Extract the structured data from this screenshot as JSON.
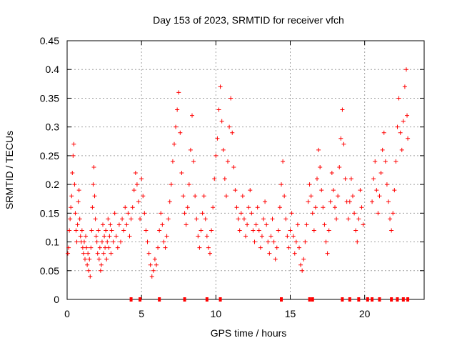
{
  "chart_data": {
    "type": "scatter",
    "title": "Day 153 of 2023, SRMTID for receiver vfch",
    "xlabel": "GPS time / hours",
    "ylabel": "SRMTID / TECUs",
    "xlim": [
      0,
      24
    ],
    "ylim": [
      0,
      0.45
    ],
    "xticks": [
      "0",
      "5",
      "10",
      "15",
      "20"
    ],
    "xtick_values": [
      0,
      5,
      10,
      15,
      20
    ],
    "yticks": [
      "0",
      "0.05",
      "0.1",
      "0.15",
      "0.2",
      "0.25",
      "0.3",
      "0.35",
      "0.4",
      "0.45"
    ],
    "ytick_values": [
      0,
      0.05,
      0.1,
      0.15,
      0.2,
      0.25,
      0.3,
      0.35,
      0.4,
      0.45
    ],
    "grid": true,
    "marker": "plus",
    "color": "#ff0000",
    "points": [
      [
        0.05,
        0.08
      ],
      [
        0.1,
        0.09
      ],
      [
        0.15,
        0.12
      ],
      [
        0.2,
        0.14
      ],
      [
        0.25,
        0.16
      ],
      [
        0.3,
        0.18
      ],
      [
        0.35,
        0.22
      ],
      [
        0.4,
        0.25
      ],
      [
        0.45,
        0.27
      ],
      [
        0.5,
        0.2
      ],
      [
        0.55,
        0.15
      ],
      [
        0.6,
        0.12
      ],
      [
        0.65,
        0.1
      ],
      [
        0.7,
        0.13
      ],
      [
        0.75,
        0.17
      ],
      [
        0.8,
        0.19
      ],
      [
        0.85,
        0.14
      ],
      [
        0.9,
        0.11
      ],
      [
        0.95,
        0.1
      ],
      [
        1.0,
        0.12
      ],
      [
        1.05,
        0.09
      ],
      [
        1.1,
        0.08
      ],
      [
        1.15,
        0.1
      ],
      [
        1.2,
        0.07
      ],
      [
        1.25,
        0.11
      ],
      [
        1.3,
        0.09
      ],
      [
        1.35,
        0.06
      ],
      [
        1.4,
        0.08
      ],
      [
        1.45,
        0.05
      ],
      [
        1.5,
        0.07
      ],
      [
        1.55,
        0.04
      ],
      [
        1.6,
        0.09
      ],
      [
        1.65,
        0.12
      ],
      [
        1.7,
        0.16
      ],
      [
        1.75,
        0.2
      ],
      [
        1.8,
        0.23
      ],
      [
        1.85,
        0.18
      ],
      [
        1.9,
        0.14
      ],
      [
        1.95,
        0.11
      ],
      [
        2.0,
        0.1
      ],
      [
        2.05,
        0.08
      ],
      [
        2.1,
        0.12
      ],
      [
        2.15,
        0.07
      ],
      [
        2.2,
        0.09
      ],
      [
        2.25,
        0.05
      ],
      [
        2.3,
        0.06
      ],
      [
        2.35,
        0.1
      ],
      [
        2.4,
        0.13
      ],
      [
        2.45,
        0.08
      ],
      [
        2.5,
        0.11
      ],
      [
        2.55,
        0.09
      ],
      [
        2.6,
        0.12
      ],
      [
        2.65,
        0.07
      ],
      [
        2.7,
        0.1
      ],
      [
        2.75,
        0.14
      ],
      [
        2.8,
        0.09
      ],
      [
        2.85,
        0.11
      ],
      [
        2.9,
        0.13
      ],
      [
        2.95,
        0.08
      ],
      [
        3.0,
        0.12
      ],
      [
        3.1,
        0.1
      ],
      [
        3.2,
        0.15
      ],
      [
        3.3,
        0.11
      ],
      [
        3.4,
        0.09
      ],
      [
        3.5,
        0.13
      ],
      [
        3.6,
        0.1
      ],
      [
        3.7,
        0.14
      ],
      [
        3.8,
        0.12
      ],
      [
        3.9,
        0.16
      ],
      [
        4.0,
        0.13
      ],
      [
        4.1,
        0.15
      ],
      [
        4.2,
        0.11
      ],
      [
        4.3,
        0.14
      ],
      [
        4.4,
        0.16
      ],
      [
        4.5,
        0.19
      ],
      [
        4.6,
        0.22
      ],
      [
        4.7,
        0.2
      ],
      [
        4.8,
        0.17
      ],
      [
        4.9,
        0.14
      ],
      [
        5.0,
        0.21
      ],
      [
        5.1,
        0.18
      ],
      [
        5.2,
        0.15
      ],
      [
        5.3,
        0.12
      ],
      [
        5.4,
        0.1
      ],
      [
        5.5,
        0.08
      ],
      [
        5.6,
        0.06
      ],
      [
        5.7,
        0.04
      ],
      [
        5.8,
        0.05
      ],
      [
        5.9,
        0.07
      ],
      [
        6.0,
        0.06
      ],
      [
        6.1,
        0.09
      ],
      [
        6.2,
        0.12
      ],
      [
        6.3,
        0.15
      ],
      [
        6.4,
        0.13
      ],
      [
        6.5,
        0.1
      ],
      [
        6.6,
        0.09
      ],
      [
        6.7,
        0.11
      ],
      [
        6.8,
        0.14
      ],
      [
        6.9,
        0.17
      ],
      [
        7.0,
        0.2
      ],
      [
        7.1,
        0.24
      ],
      [
        7.2,
        0.27
      ],
      [
        7.3,
        0.3
      ],
      [
        7.4,
        0.33
      ],
      [
        7.5,
        0.36
      ],
      [
        7.6,
        0.29
      ],
      [
        7.7,
        0.22
      ],
      [
        7.8,
        0.18
      ],
      [
        7.9,
        0.15
      ],
      [
        8.0,
        0.13
      ],
      [
        8.1,
        0.16
      ],
      [
        8.2,
        0.2
      ],
      [
        8.3,
        0.26
      ],
      [
        8.4,
        0.32
      ],
      [
        8.5,
        0.24
      ],
      [
        8.6,
        0.18
      ],
      [
        8.7,
        0.14
      ],
      [
        8.8,
        0.11
      ],
      [
        8.9,
        0.09
      ],
      [
        9.0,
        0.12
      ],
      [
        9.1,
        0.15
      ],
      [
        9.2,
        0.18
      ],
      [
        9.3,
        0.14
      ],
      [
        9.4,
        0.11
      ],
      [
        9.5,
        0.09
      ],
      [
        9.6,
        0.08
      ],
      [
        9.7,
        0.12
      ],
      [
        9.8,
        0.16
      ],
      [
        9.9,
        0.21
      ],
      [
        10.0,
        0.25
      ],
      [
        10.1,
        0.28
      ],
      [
        10.2,
        0.33
      ],
      [
        10.3,
        0.37
      ],
      [
        10.4,
        0.31
      ],
      [
        10.5,
        0.26
      ],
      [
        10.6,
        0.21
      ],
      [
        10.7,
        0.18
      ],
      [
        10.8,
        0.24
      ],
      [
        10.9,
        0.3
      ],
      [
        11.0,
        0.35
      ],
      [
        11.1,
        0.29
      ],
      [
        11.2,
        0.23
      ],
      [
        11.3,
        0.19
      ],
      [
        11.4,
        0.16
      ],
      [
        11.5,
        0.14
      ],
      [
        11.6,
        0.12
      ],
      [
        11.7,
        0.15
      ],
      [
        11.8,
        0.18
      ],
      [
        11.9,
        0.14
      ],
      [
        12.0,
        0.11
      ],
      [
        12.1,
        0.13
      ],
      [
        12.2,
        0.16
      ],
      [
        12.3,
        0.19
      ],
      [
        12.4,
        0.15
      ],
      [
        12.5,
        0.12
      ],
      [
        12.6,
        0.1
      ],
      [
        12.7,
        0.13
      ],
      [
        12.8,
        0.16
      ],
      [
        12.9,
        0.12
      ],
      [
        13.0,
        0.09
      ],
      [
        13.1,
        0.11
      ],
      [
        13.2,
        0.14
      ],
      [
        13.3,
        0.17
      ],
      [
        13.4,
        0.13
      ],
      [
        13.5,
        0.1
      ],
      [
        13.6,
        0.08
      ],
      [
        13.7,
        0.11
      ],
      [
        13.8,
        0.14
      ],
      [
        13.9,
        0.1
      ],
      [
        14.0,
        0.07
      ],
      [
        14.1,
        0.09
      ],
      [
        14.2,
        0.12
      ],
      [
        14.3,
        0.16
      ],
      [
        14.4,
        0.2
      ],
      [
        14.5,
        0.24
      ],
      [
        14.6,
        0.18
      ],
      [
        14.7,
        0.14
      ],
      [
        14.8,
        0.11
      ],
      [
        14.9,
        0.09
      ],
      [
        15.0,
        0.12
      ],
      [
        15.1,
        0.15
      ],
      [
        15.2,
        0.11
      ],
      [
        15.3,
        0.08
      ],
      [
        15.4,
        0.1
      ],
      [
        15.5,
        0.13
      ],
      [
        15.6,
        0.09
      ],
      [
        15.7,
        0.06
      ],
      [
        15.8,
        0.05
      ],
      [
        15.9,
        0.07
      ],
      [
        16.0,
        0.1
      ],
      [
        16.1,
        0.13
      ],
      [
        16.2,
        0.17
      ],
      [
        16.3,
        0.2
      ],
      [
        16.4,
        0.18
      ],
      [
        16.5,
        0.15
      ],
      [
        16.6,
        0.12
      ],
      [
        16.7,
        0.16
      ],
      [
        16.8,
        0.21
      ],
      [
        16.9,
        0.26
      ],
      [
        17.0,
        0.23
      ],
      [
        17.1,
        0.19
      ],
      [
        17.2,
        0.16
      ],
      [
        17.3,
        0.13
      ],
      [
        17.4,
        0.1
      ],
      [
        17.5,
        0.08
      ],
      [
        17.6,
        0.12
      ],
      [
        17.7,
        0.17
      ],
      [
        17.8,
        0.22
      ],
      [
        17.9,
        0.19
      ],
      [
        18.0,
        0.16
      ],
      [
        18.1,
        0.14
      ],
      [
        18.2,
        0.18
      ],
      [
        18.3,
        0.23
      ],
      [
        18.4,
        0.28
      ],
      [
        18.5,
        0.33
      ],
      [
        18.6,
        0.27
      ],
      [
        18.7,
        0.21
      ],
      [
        18.8,
        0.17
      ],
      [
        18.9,
        0.14
      ],
      [
        19.0,
        0.17
      ],
      [
        19.1,
        0.21
      ],
      [
        19.2,
        0.18
      ],
      [
        19.3,
        0.15
      ],
      [
        19.4,
        0.12
      ],
      [
        19.5,
        0.1
      ],
      [
        19.6,
        0.14
      ],
      [
        19.7,
        0.19
      ],
      [
        19.8,
        0.16
      ],
      [
        19.9,
        0.13
      ],
      [
        20.5,
        0.17
      ],
      [
        20.6,
        0.21
      ],
      [
        20.7,
        0.24
      ],
      [
        20.8,
        0.19
      ],
      [
        20.9,
        0.15
      ],
      [
        21.0,
        0.18
      ],
      [
        21.1,
        0.22
      ],
      [
        21.2,
        0.26
      ],
      [
        21.3,
        0.29
      ],
      [
        21.4,
        0.24
      ],
      [
        21.5,
        0.2
      ],
      [
        21.6,
        0.17
      ],
      [
        21.7,
        0.14
      ],
      [
        21.8,
        0.12
      ],
      [
        21.9,
        0.15
      ],
      [
        22.0,
        0.19
      ],
      [
        22.1,
        0.24
      ],
      [
        22.2,
        0.3
      ],
      [
        22.3,
        0.35
      ],
      [
        22.4,
        0.29
      ],
      [
        22.5,
        0.26
      ],
      [
        22.6,
        0.31
      ],
      [
        22.7,
        0.37
      ],
      [
        22.8,
        0.4
      ],
      [
        22.85,
        0.32
      ],
      [
        22.9,
        0.28
      ]
    ],
    "zero_markers_x": [
      4.3,
      4.9,
      6.2,
      7.9,
      9.4,
      10.3,
      14.4,
      16.3,
      16.5,
      18.5,
      19.0,
      19.6,
      20.2,
      20.5,
      21.0,
      21.8,
      22.2,
      22.6,
      22.9
    ]
  }
}
